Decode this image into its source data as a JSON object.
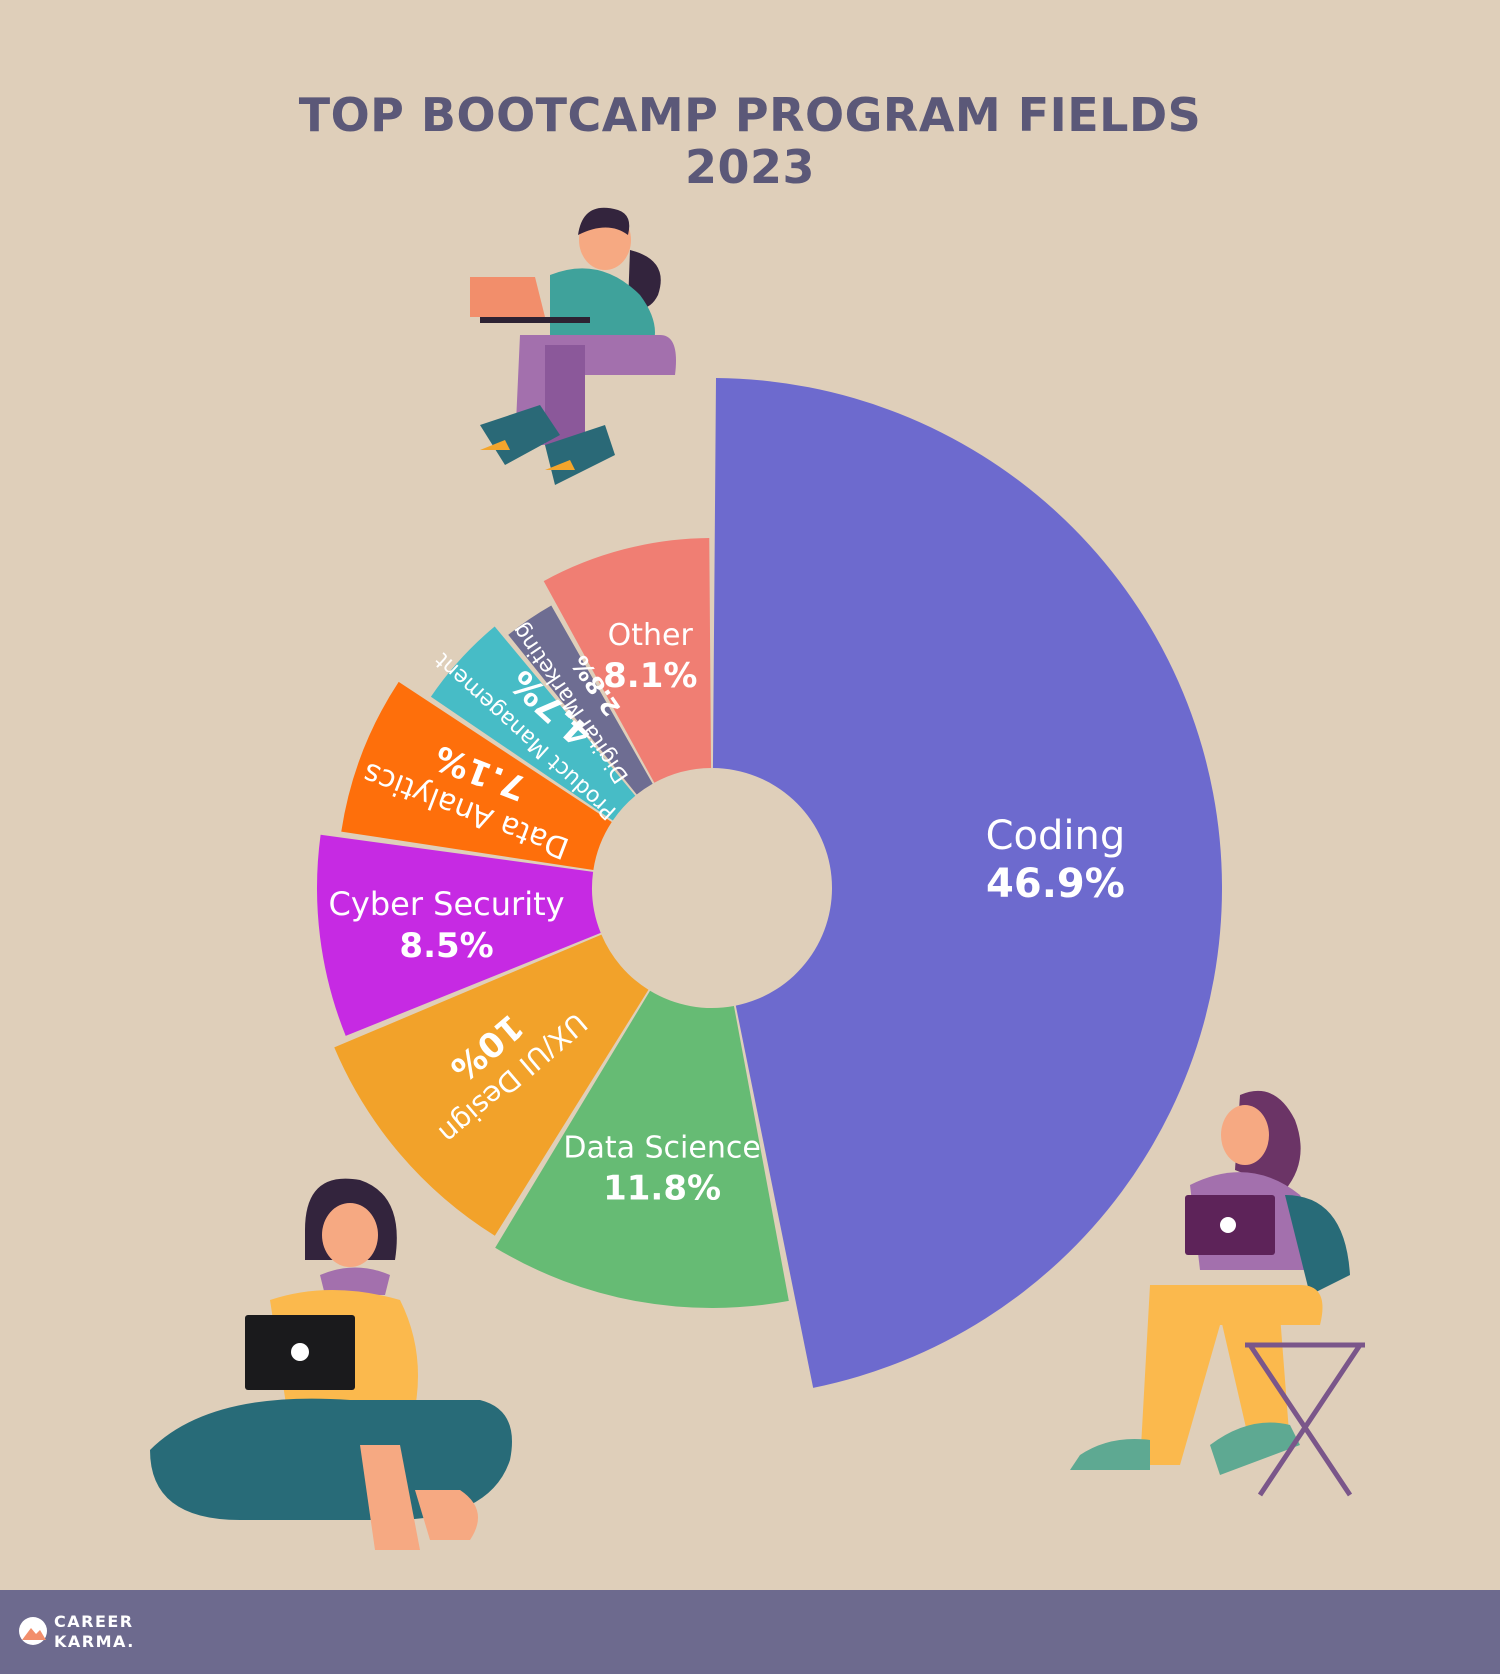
{
  "title": {
    "line1": "TOP BOOTCAMP PROGRAM FIELDS",
    "line2": "2023"
  },
  "chart_data": {
    "type": "pie",
    "donut": true,
    "title": "TOP BOOTCAMP PROGRAM FIELDS 2023",
    "slices": [
      {
        "label": "Coding",
        "value_label": "46.9%",
        "value": 46.9,
        "color": "#6d6ace"
      },
      {
        "label": "Data Science",
        "value_label": "11.8%",
        "value": 11.8,
        "color": "#66bb74"
      },
      {
        "label": "UX/UI Design",
        "value_label": "10%",
        "value": 10.0,
        "color": "#f2a22a"
      },
      {
        "label": "Cyber Security",
        "value_label": "8.5%",
        "value": 8.5,
        "color": "#c62ae3"
      },
      {
        "label": "Data Analytics",
        "value_label": "7.1%",
        "value": 7.1,
        "color": "#fe6f0b"
      },
      {
        "label": "Product Management",
        "value_label": "4.7%",
        "value": 4.7,
        "color": "#47bcc6"
      },
      {
        "label": "Digital Marketing",
        "value_label": "2.8%",
        "value": 2.8,
        "color": "#6e6d92"
      },
      {
        "label": "Other",
        "value_label": "8.1%",
        "value": 8.1,
        "color": "#f07e73"
      }
    ]
  },
  "footer": {
    "brand_line1": "CAREER",
    "brand_line2": "KARMA."
  },
  "colors": {
    "background": "#dfcfba",
    "footer": "#6d6a8e",
    "title": "#5b5878"
  },
  "icons": [
    "woman-laptop-illustration",
    "woman-tablet-sitting-illustration",
    "woman-chair-tablet-illustration",
    "career-karma-logo"
  ]
}
